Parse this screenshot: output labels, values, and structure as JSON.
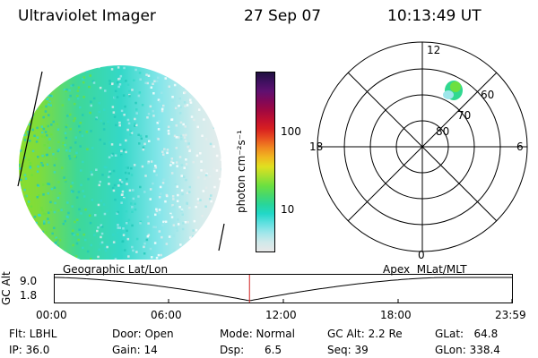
{
  "header": {
    "instrument": "Ultraviolet Imager",
    "date": "27 Sep 07",
    "time": "10:13:49 UT"
  },
  "colorbar": {
    "unit_label": "photon cm⁻²s⁻¹",
    "tick_labels": [
      "100",
      "10"
    ],
    "colors": [
      "#e8e8e8",
      "#cfe9ea",
      "#9ee6ea",
      "#60e0e0",
      "#22d8c8",
      "#28d69a",
      "#48d86a",
      "#6ce040",
      "#a8e030",
      "#e0e020",
      "#f0b820",
      "#f08820",
      "#e85020",
      "#d82020",
      "#c01030",
      "#a00840",
      "#800858",
      "#601070",
      "#401060",
      "#201040"
    ]
  },
  "polar_plot": {
    "mlt_labels": {
      "top": "12",
      "bottom": "0",
      "left": "18",
      "right": "6"
    },
    "lat_labels": [
      "60",
      "70",
      "80"
    ]
  },
  "timeline": {
    "left_title": "Geographic Lat/Lon",
    "right_title": "Apex  MLat/MLT",
    "axis_label": "GC Alt",
    "y_ticks": [
      "9.0",
      "1.8"
    ],
    "x_ticks": [
      "00:00",
      "06:00",
      "12:00",
      "18:00",
      "23:59"
    ],
    "current_time_hours": 10.23
  },
  "status": {
    "flt": "Flt: LBHL",
    "ip": "IP: 36.0",
    "door": "Door: Open",
    "gain": "Gain: 14",
    "mode": "Mode: Normal",
    "dsp": "Dsp:      6.5",
    "gcalt": "GC Alt: 2.2 Re",
    "seq": "Seq: 39",
    "glat": "GLat:   64.8",
    "glon": "GLon: 338.4"
  }
}
